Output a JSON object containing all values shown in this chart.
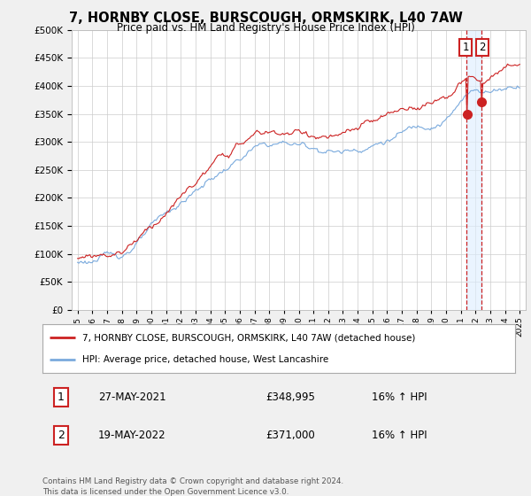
{
  "title": "7, HORNBY CLOSE, BURSCOUGH, ORMSKIRK, L40 7AW",
  "subtitle": "Price paid vs. HM Land Registry's House Price Index (HPI)",
  "legend_line1": "7, HORNBY CLOSE, BURSCOUGH, ORMSKIRK, L40 7AW (detached house)",
  "legend_line2": "HPI: Average price, detached house, West Lancashire",
  "transaction1_label": "1",
  "transaction1_date": "27-MAY-2021",
  "transaction1_price": "£348,995",
  "transaction1_hpi": "16% ↑ HPI",
  "transaction2_label": "2",
  "transaction2_date": "19-MAY-2022",
  "transaction2_price": "£371,000",
  "transaction2_hpi": "16% ↑ HPI",
  "footer": "Contains HM Land Registry data © Crown copyright and database right 2024.\nThis data is licensed under the Open Government Licence v3.0.",
  "hpi_color": "#7aaadd",
  "price_color": "#cc2222",
  "marker_color": "#cc2222",
  "label_box_color": "#cc2222",
  "background_color": "#f0f0f0",
  "plot_bg_color": "#ffffff",
  "grid_color": "#cccccc",
  "shade_color": "#ddeeff",
  "ylim": [
    0,
    500000
  ],
  "yticks": [
    0,
    50000,
    100000,
    150000,
    200000,
    250000,
    300000,
    350000,
    400000,
    450000,
    500000
  ],
  "xstart_year": 1995,
  "xend_year": 2025,
  "transaction1_year": 2021.4,
  "transaction2_year": 2022.4,
  "transaction1_price_val": 348995,
  "transaction2_price_val": 371000
}
